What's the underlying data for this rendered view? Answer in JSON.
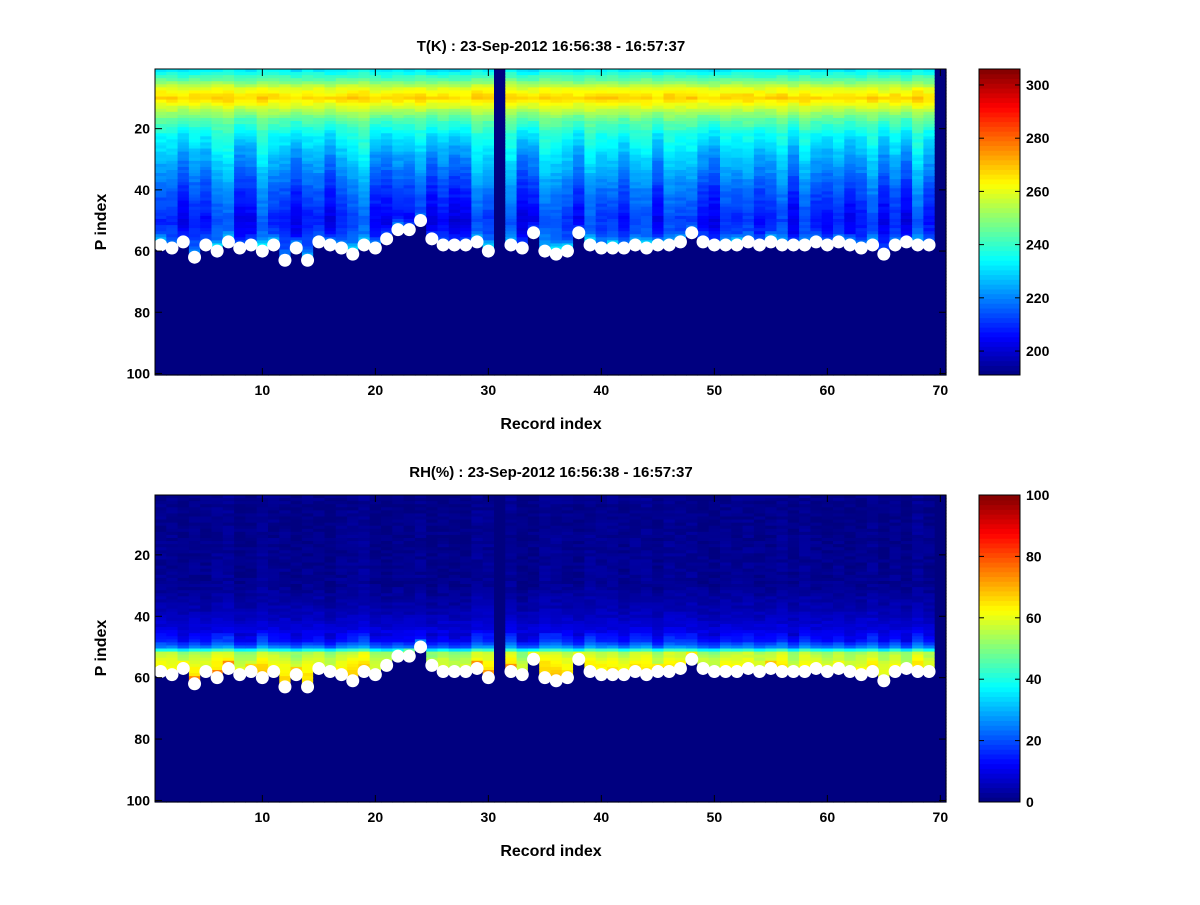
{
  "chart_data": [
    {
      "type": "heatmap",
      "title": "T(K) : 23-Sep-2012 16:56:38 - 16:57:37",
      "xlabel": "Record index",
      "ylabel": "P index",
      "xlim": [
        0.5,
        70.5
      ],
      "ylim": [
        0.5,
        100.5
      ],
      "y_reversed": true,
      "xticks": [
        10,
        20,
        30,
        40,
        50,
        60,
        70
      ],
      "yticks": [
        20,
        40,
        60,
        80,
        100
      ],
      "colormap": "jet",
      "clim": [
        191,
        306
      ],
      "colorbar_ticks": [
        200,
        220,
        240,
        260,
        280,
        300
      ],
      "profile_keypoints": {
        "p": [
          1,
          4,
          7,
          10,
          13,
          17,
          22,
          30,
          40,
          50,
          58
        ],
        "value": [
          233,
          245,
          260,
          268,
          258,
          245,
          235,
          226,
          216,
          209,
          214
        ]
      },
      "missing_records": [
        31,
        70
      ],
      "fill_below_surface": 191
    },
    {
      "type": "heatmap",
      "title": "RH(%) : 23-Sep-2012 16:56:38 - 16:57:37",
      "xlabel": "Record index",
      "ylabel": "P index",
      "xlim": [
        0.5,
        70.5
      ],
      "ylim": [
        0.5,
        100.5
      ],
      "y_reversed": true,
      "xticks": [
        10,
        20,
        30,
        40,
        50,
        60,
        70
      ],
      "yticks": [
        20,
        40,
        60,
        80,
        100
      ],
      "colormap": "jet",
      "clim": [
        0,
        100
      ],
      "colorbar_ticks": [
        0,
        20,
        40,
        60,
        80,
        100
      ],
      "profile_keypoints": {
        "p": [
          1,
          30,
          38,
          44,
          48,
          50,
          52,
          55,
          62
        ],
        "value": [
          1,
          2,
          5,
          9,
          15,
          25,
          55,
          60,
          68
        ]
      },
      "missing_records": [
        31,
        70
      ],
      "fill_below_surface": 0
    }
  ],
  "surface": {
    "records": [
      1,
      2,
      3,
      4,
      5,
      6,
      7,
      8,
      9,
      10,
      11,
      12,
      13,
      14,
      15,
      16,
      17,
      18,
      19,
      20,
      21,
      22,
      23,
      24,
      25,
      26,
      27,
      28,
      29,
      30,
      32,
      33,
      34,
      35,
      36,
      37,
      38,
      39,
      40,
      41,
      42,
      43,
      44,
      45,
      46,
      47,
      48,
      49,
      50,
      51,
      52,
      53,
      54,
      55,
      56,
      57,
      58,
      59,
      60,
      61,
      62,
      63,
      64,
      65,
      66,
      67,
      68,
      69
    ],
    "p_index": [
      58,
      59,
      57,
      62,
      58,
      60,
      57,
      59,
      58,
      60,
      58,
      63,
      59,
      63,
      57,
      58,
      59,
      61,
      58,
      59,
      56,
      53,
      53,
      50,
      56,
      58,
      58,
      58,
      57,
      60,
      58,
      59,
      54,
      60,
      61,
      60,
      54,
      58,
      59,
      59,
      59,
      58,
      59,
      58,
      58,
      57,
      54,
      57,
      58,
      58,
      58,
      57,
      58,
      57,
      58,
      58,
      58,
      57,
      58,
      57,
      58,
      59,
      58,
      61,
      58,
      57,
      58,
      58
    ],
    "marker_color": "#ffffff"
  }
}
